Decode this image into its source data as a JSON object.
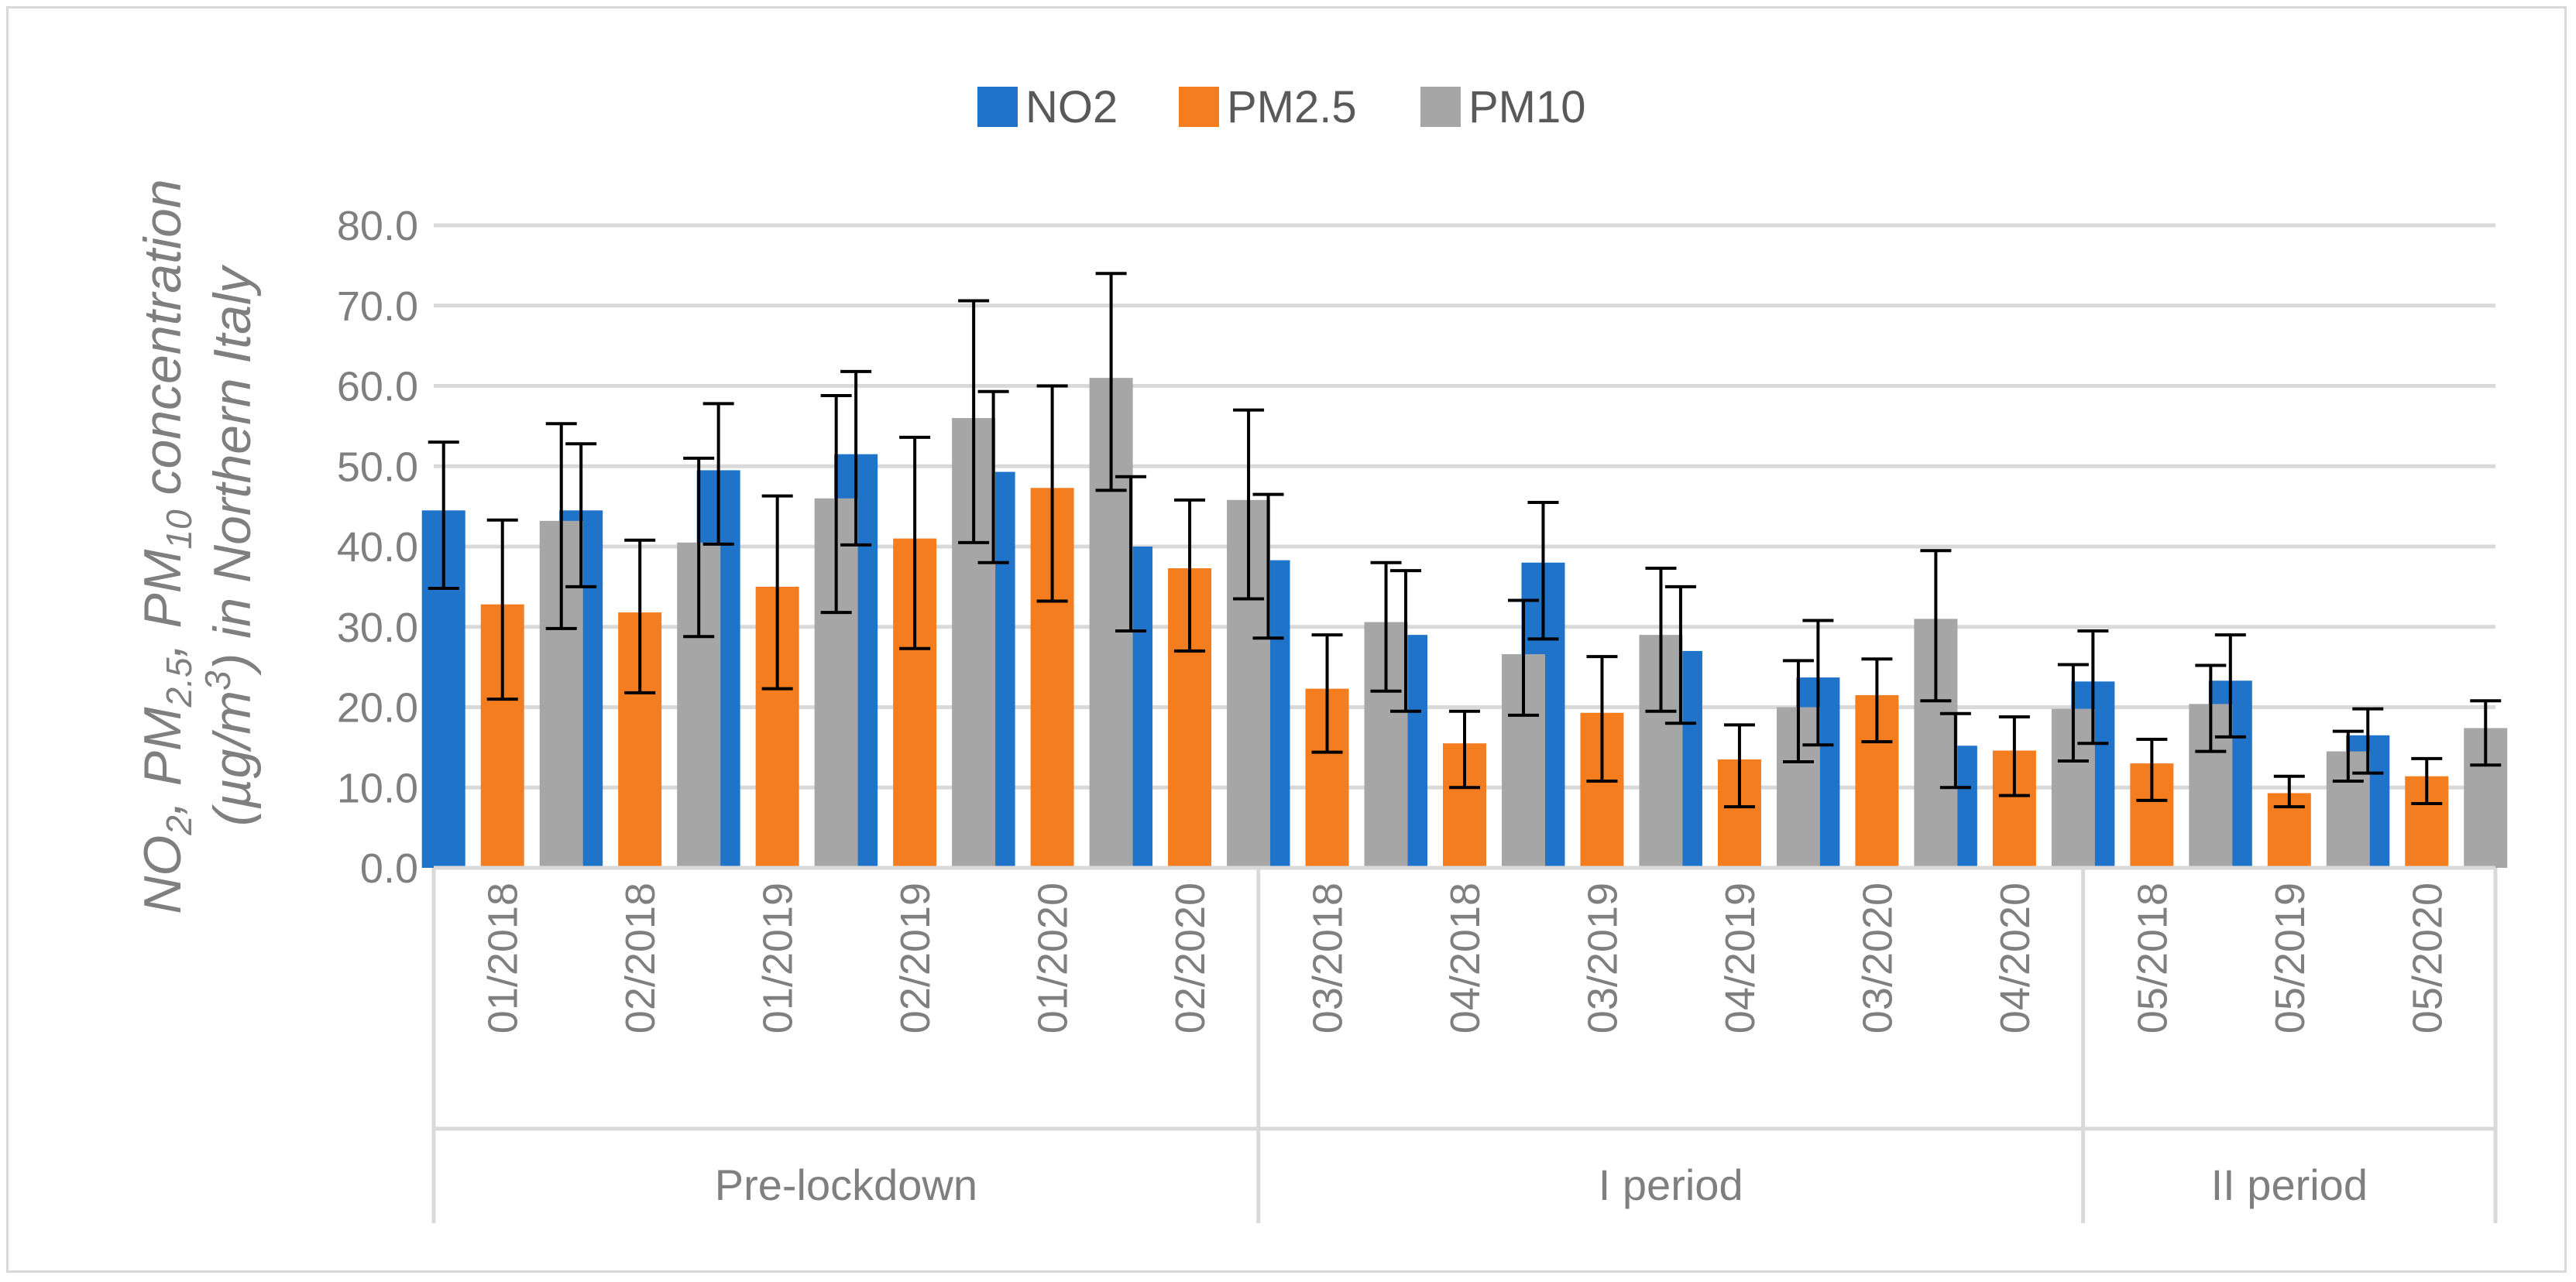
{
  "chart_data": {
    "type": "bar",
    "title": "",
    "ylabel": "NO2, PM2.5, PM10 concentration (µg/m3) in Northern Italy",
    "ylabel_lines": [
      "NO",
      "2",
      ", PM",
      "2.5",
      ", PM",
      "10",
      " concentration",
      "(µg/m",
      "3",
      ") in Northern Italy"
    ],
    "ylim": [
      0,
      80
    ],
    "yticks": [
      "0.0",
      "10.0",
      "20.0",
      "30.0",
      "40.0",
      "50.0",
      "60.0",
      "70.0",
      "80.0"
    ],
    "grid": true,
    "legend_position": "top",
    "categories": [
      "01/2018",
      "02/2018",
      "01/2019",
      "02/2019",
      "01/2020",
      "02/2020",
      "03/2018",
      "04/2018",
      "03/2019",
      "04/2019",
      "03/2020",
      "04/2020",
      "05/2018",
      "05/2019",
      "05/2020"
    ],
    "groups": [
      {
        "label": "Pre-lockdown",
        "count": 6
      },
      {
        "label": "I period",
        "count": 6
      },
      {
        "label": "II period",
        "count": 3
      }
    ],
    "series": [
      {
        "name": "NO2",
        "color": "#1f73c8",
        "values": [
          44.5,
          44.5,
          49.5,
          51.5,
          49.3,
          40.0,
          38.3,
          29.0,
          38.0,
          27.0,
          23.7,
          15.2,
          23.2,
          23.3,
          16.5
        ],
        "err_low": [
          34.8,
          35.0,
          40.3,
          40.2,
          38.0,
          29.5,
          28.6,
          19.5,
          28.5,
          18.0,
          15.3,
          10.0,
          15.5,
          16.3,
          11.8
        ],
        "err_high": [
          53.0,
          52.8,
          57.8,
          61.8,
          59.3,
          48.7,
          46.5,
          37.0,
          45.5,
          35.0,
          30.8,
          19.2,
          29.5,
          29.0,
          19.8
        ]
      },
      {
        "name": "PM2.5",
        "color": "#f47d20",
        "values": [
          32.8,
          31.8,
          35.0,
          41.0,
          47.3,
          37.3,
          22.3,
          15.5,
          19.3,
          13.5,
          21.5,
          14.6,
          13.0,
          9.3,
          11.4
        ],
        "err_low": [
          21.0,
          21.8,
          22.3,
          27.3,
          33.2,
          27.0,
          14.4,
          10.0,
          10.8,
          7.6,
          15.7,
          9.0,
          8.4,
          7.6,
          8.0
        ],
        "err_high": [
          43.3,
          40.8,
          46.3,
          53.6,
          60.0,
          45.8,
          29.0,
          19.5,
          26.3,
          17.8,
          26.0,
          18.8,
          16.0,
          11.4,
          13.6
        ]
      },
      {
        "name": "PM10",
        "color": "#a6a6a6",
        "values": [
          43.2,
          40.5,
          46.0,
          56.0,
          61.0,
          45.8,
          30.6,
          26.6,
          29.0,
          20.0,
          31.0,
          19.8,
          20.4,
          14.5,
          17.4
        ],
        "err_low": [
          29.8,
          28.8,
          31.8,
          40.5,
          47.0,
          33.5,
          22.0,
          19.0,
          19.5,
          13.2,
          20.8,
          13.3,
          14.5,
          10.8,
          12.8
        ],
        "err_high": [
          55.3,
          51.0,
          58.8,
          70.6,
          74.0,
          57.0,
          38.0,
          33.3,
          37.3,
          25.8,
          39.5,
          25.3,
          25.2,
          17.0,
          20.8
        ]
      }
    ]
  }
}
